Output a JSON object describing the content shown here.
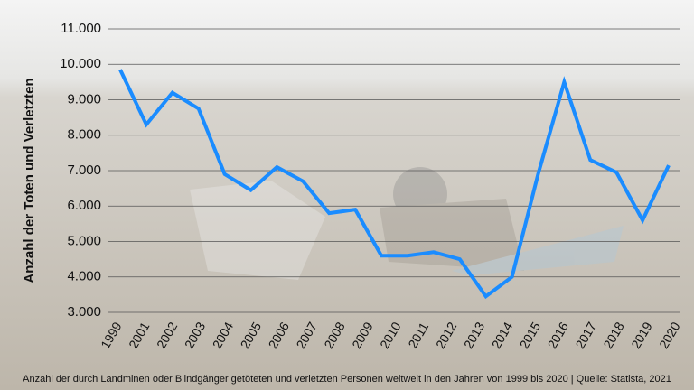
{
  "chart_data": {
    "type": "line",
    "y_label": "Anzahl der Toten und Verletzten",
    "caption": "Anzahl der durch Landminen oder Blindgänger getöteten und verletzten Personen weltweit in den Jahren von 1999 bis 2020  |  Quelle: Statista, 2021",
    "categories": [
      "1999",
      null,
      "2001",
      "2002",
      "2003",
      "2004",
      "2005",
      "2006",
      "2007",
      "2008",
      "2009",
      "2010",
      "2011",
      "2012",
      "2013",
      "2014",
      "2015",
      "2016",
      "2017",
      "2018",
      "2019",
      "2020"
    ],
    "series": [
      {
        "name": "Tote und Verletzte",
        "color": "#1a8cff",
        "values": [
          9850,
          8300,
          9200,
          8750,
          6900,
          6450,
          7100,
          6700,
          5800,
          5900,
          4600,
          4600,
          4700,
          4500,
          3450,
          4000,
          6900,
          9500,
          7300,
          6950,
          5600,
          7150
        ]
      }
    ],
    "ylim": [
      3000,
      11000
    ],
    "yticks": [
      {
        "value": 3000,
        "label": "3.000"
      },
      {
        "value": 4000,
        "label": "4.000"
      },
      {
        "value": 5000,
        "label": "5.000"
      },
      {
        "value": 6000,
        "label": "6.000"
      },
      {
        "value": 7000,
        "label": "7.000"
      },
      {
        "value": 8000,
        "label": "8.000"
      },
      {
        "value": 9000,
        "label": "9.000"
      },
      {
        "value": 10000,
        "label": "10.000"
      },
      {
        "value": 11000,
        "label": "11.000"
      }
    ],
    "grid": true
  }
}
